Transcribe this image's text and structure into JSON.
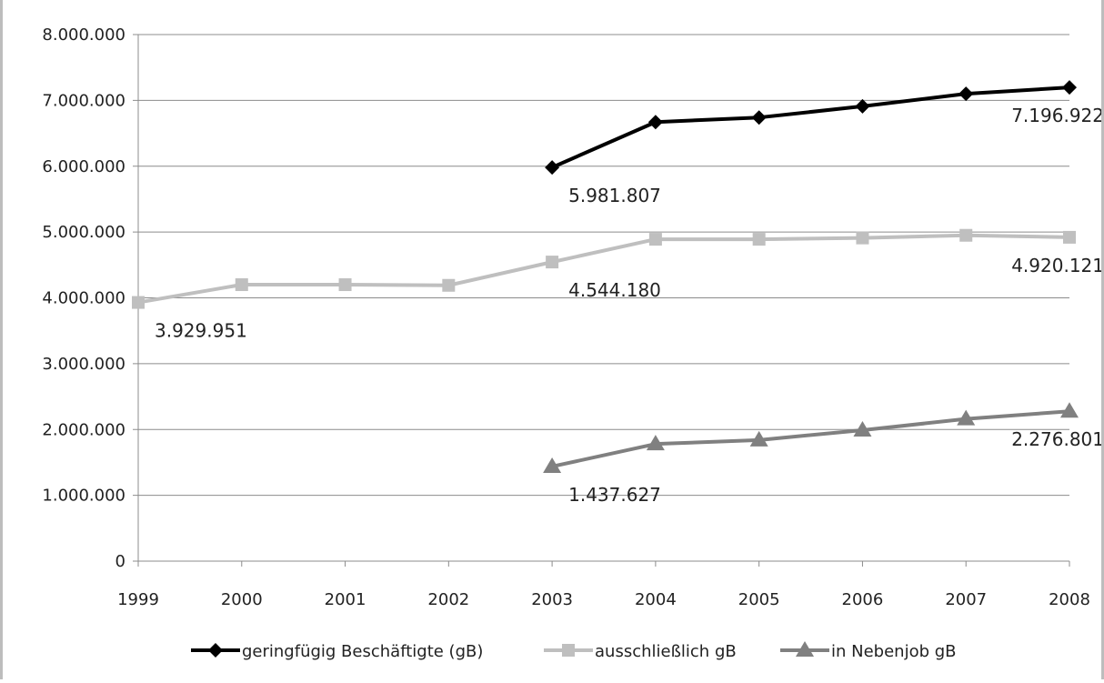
{
  "chart_data": {
    "type": "line",
    "title": "",
    "xlabel": "",
    "ylabel": "",
    "categories": [
      "1999",
      "2000",
      "2001",
      "2002",
      "2003",
      "2004",
      "2005",
      "2006",
      "2007",
      "2008"
    ],
    "y_ticks": [
      "0",
      "1.000.000",
      "2.000.000",
      "3.000.000",
      "4.000.000",
      "5.000.000",
      "6.000.000",
      "7.000.000",
      "8.000.000"
    ],
    "ylim": [
      0,
      8000000
    ],
    "grid": true,
    "legend_position": "bottom",
    "series": [
      {
        "name": "geringfügig Beschäftigte (gB)",
        "color": "#000000",
        "marker": "diamond",
        "values": [
          null,
          null,
          null,
          null,
          5981807,
          6670000,
          6740000,
          6910000,
          7100000,
          7196922
        ],
        "labels": [
          {
            "index": 4,
            "text": "5.981.807"
          },
          {
            "index": 9,
            "text": "7.196.922"
          }
        ]
      },
      {
        "name": "ausschließlich gB",
        "color": "#bfbfbf",
        "marker": "square",
        "values": [
          3929951,
          4200000,
          4200000,
          4190000,
          4544180,
          4890000,
          4890000,
          4910000,
          4950000,
          4920121
        ],
        "labels": [
          {
            "index": 0,
            "text": "3.929.951"
          },
          {
            "index": 4,
            "text": "4.544.180"
          },
          {
            "index": 9,
            "text": "4.920.121"
          }
        ]
      },
      {
        "name": "in Nebenjob gB",
        "color": "#808080",
        "marker": "triangle",
        "values": [
          null,
          null,
          null,
          null,
          1437627,
          1780000,
          1840000,
          1990000,
          2160000,
          2276801
        ],
        "labels": [
          {
            "index": 4,
            "text": "1.437.627"
          },
          {
            "index": 9,
            "text": "2.276.801"
          }
        ]
      }
    ]
  }
}
